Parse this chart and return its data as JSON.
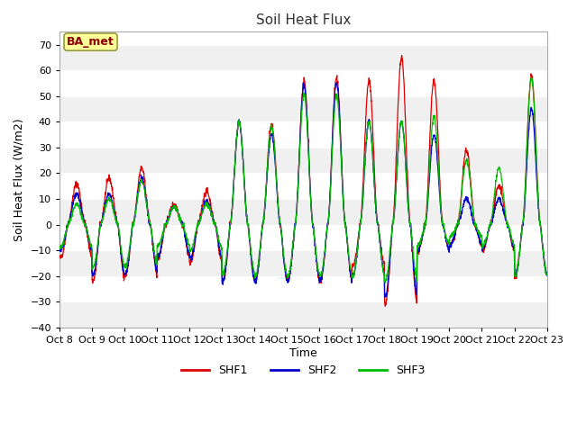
{
  "title": "Soil Heat Flux",
  "xlabel": "Time",
  "ylabel": "Soil Heat Flux (W/m2)",
  "ylim": [
    -40,
    75
  ],
  "yticks": [
    -40,
    -30,
    -20,
    -10,
    0,
    10,
    20,
    30,
    40,
    50,
    60,
    70
  ],
  "fig_bg_color": "#ffffff",
  "plot_bg_color": "#ffffff",
  "grid_color": "#dddddd",
  "line_colors": {
    "SHF1": "#dd0000",
    "SHF2": "#0000cc",
    "SHF3": "#00bb00"
  },
  "legend_label": "BA_met",
  "legend_label_color": "#8b0000",
  "legend_bg_color": "#ffff99",
  "xtick_labels": [
    "Oct 8",
    "Oct 9",
    "Oct 10",
    "Oct 11",
    "Oct 12",
    "Oct 13",
    "Oct 14",
    "Oct 15",
    "Oct 16",
    "Oct 17",
    "Oct 18",
    "Oct 19",
    "Oct 20",
    "Oct 21",
    "Oct 22",
    "Oct 23"
  ],
  "n_days": 15,
  "points_per_day": 144,
  "band_colors": [
    "#f0f0f0",
    "#ffffff"
  ],
  "amp_shf1": [
    16,
    18,
    22,
    8,
    13,
    40,
    39,
    56,
    57,
    56,
    65,
    56,
    29,
    15,
    58
  ],
  "amp_shf2": [
    12,
    12,
    18,
    7,
    9,
    40,
    35,
    54,
    55,
    40,
    40,
    35,
    10,
    10,
    45
  ],
  "amp_shf3": [
    8,
    10,
    17,
    7,
    8,
    40,
    38,
    51,
    50,
    40,
    40,
    42,
    25,
    22,
    57
  ],
  "night_shf1": [
    -13,
    -22,
    -20,
    -13,
    -15,
    -22,
    -22,
    -22,
    -22,
    -16,
    -31,
    -10,
    -8,
    -10,
    -20
  ],
  "night_shf2": [
    -10,
    -20,
    -19,
    -12,
    -13,
    -22,
    -22,
    -22,
    -22,
    -20,
    -28,
    -10,
    -8,
    -9,
    -20
  ],
  "night_shf3": [
    -9,
    -17,
    -16,
    -8,
    -10,
    -19,
    -20,
    -20,
    -20,
    -20,
    -22,
    -8,
    -5,
    -8,
    -20
  ]
}
